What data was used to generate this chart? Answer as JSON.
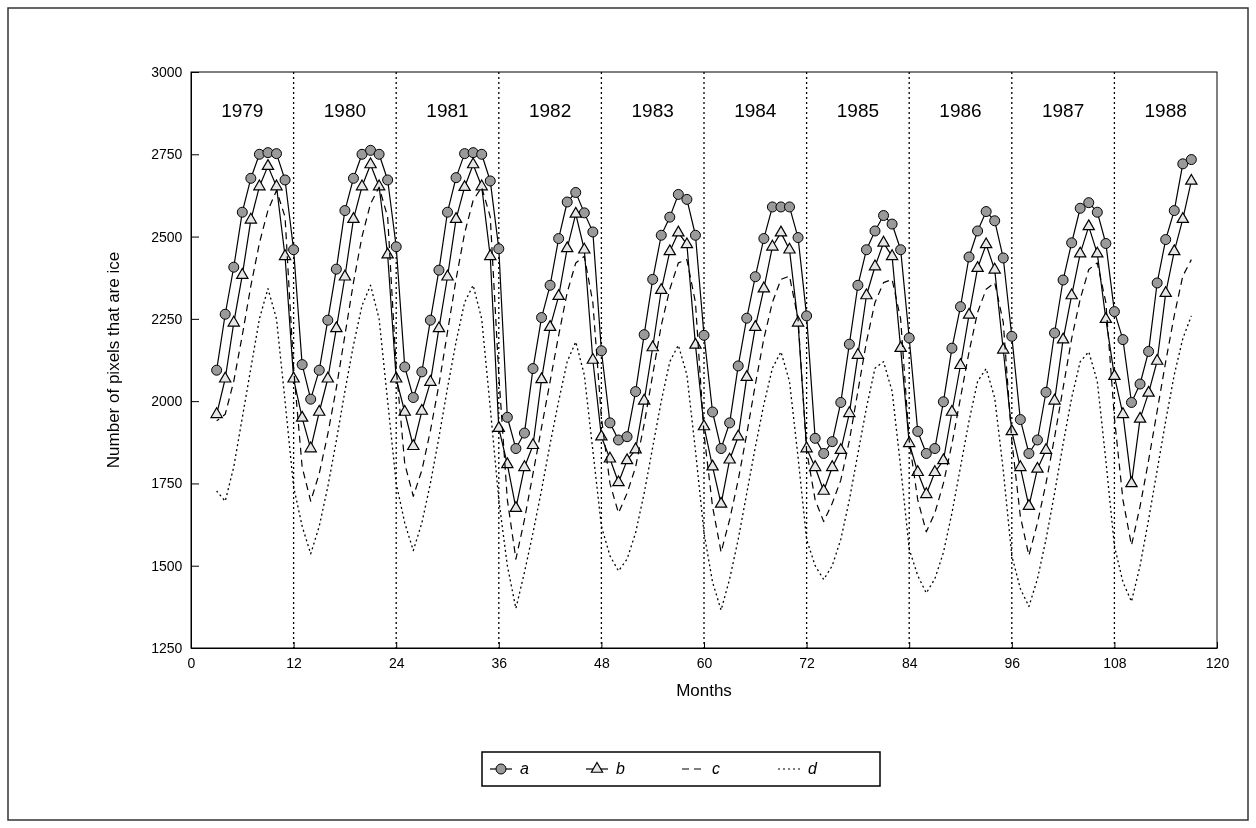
{
  "chart_data": {
    "type": "line",
    "xlabel": "Months",
    "ylabel": "Number of pixels that are ice",
    "x": [
      3,
      4,
      5,
      6,
      7,
      8,
      9,
      10,
      11,
      12,
      13,
      14,
      15,
      16,
      17,
      18,
      19,
      20,
      21,
      22,
      23,
      24,
      25,
      26,
      27,
      28,
      29,
      30,
      31,
      32,
      33,
      34,
      35,
      36,
      37,
      38,
      39,
      40,
      41,
      42,
      43,
      44,
      45,
      46,
      47,
      48,
      49,
      50,
      51,
      52,
      53,
      54,
      55,
      56,
      57,
      58,
      59,
      60,
      61,
      62,
      63,
      64,
      65,
      66,
      67,
      68,
      69,
      70,
      71,
      72,
      73,
      74,
      75,
      76,
      77,
      78,
      79,
      80,
      81,
      82,
      83,
      84,
      85,
      86,
      87,
      88,
      89,
      90,
      91,
      92,
      93,
      94,
      95,
      96,
      97,
      98,
      99,
      100,
      101,
      102,
      103,
      104,
      105,
      106,
      107,
      108,
      109,
      110,
      111,
      112,
      113,
      114,
      115,
      116,
      117
    ],
    "series": [
      {
        "name": "a",
        "color": "#000000",
        "marker": "circle",
        "line_style": "solid",
        "values": [
          2094,
          2264,
          2407,
          2574,
          2677,
          2750,
          2755,
          2752,
          2672,
          2460,
          2111,
          2006,
          2094,
          2246,
          2401,
          2579,
          2677,
          2750,
          2762,
          2750,
          2672,
          2469,
          2104,
          2011,
          2089,
          2246,
          2398,
          2574,
          2679,
          2752,
          2755,
          2750,
          2669,
          2463,
          1951,
          1856,
          1903,
          2099,
          2254,
          2352,
          2494,
          2605,
          2634,
          2572,
          2514,
          2153,
          1934,
          1882,
          1892,
          2029,
          2202,
          2370,
          2504,
          2559,
          2628,
          2613,
          2504,
          2200,
          1967,
          1856,
          1934,
          2107,
          2252,
          2378,
          2494,
          2590,
          2590,
          2590,
          2497,
          2259,
          1887,
          1841,
          1877,
          1996,
          2173,
          2352,
          2460,
          2517,
          2564,
          2538,
          2460,
          2192,
          1908,
          1841,
          1856,
          1998,
          2161,
          2287,
          2438,
          2517,
          2576,
          2548,
          2435,
          2197,
          1944,
          1841,
          1882,
          2027,
          2207,
          2368,
          2481,
          2586,
          2603,
          2574,
          2479,
          2272,
          2187,
          1996,
          2052,
          2151,
          2359,
          2491,
          2579,
          2721,
          2734
        ]
      },
      {
        "name": "b",
        "color": "#000000",
        "marker": "triangle",
        "line_style": "solid",
        "values": [
          1960,
          2068,
          2238,
          2383,
          2551,
          2652,
          2714,
          2652,
          2440,
          2068,
          1949,
          1856,
          1967,
          2068,
          2221,
          2378,
          2553,
          2652,
          2719,
          2652,
          2445,
          2068,
          1967,
          1863,
          1970,
          2058,
          2221,
          2378,
          2553,
          2650,
          2719,
          2652,
          2440,
          1918,
          1808,
          1675,
          1799,
          1866,
          2066,
          2225,
          2319,
          2464,
          2569,
          2460,
          2125,
          1892,
          1825,
          1753,
          1820,
          1853,
          2001,
          2163,
          2337,
          2455,
          2512,
          2476,
          2171,
          1923,
          1801,
          1688,
          1822,
          1892,
          2073,
          2225,
          2342,
          2469,
          2512,
          2460,
          2238,
          1856,
          1799,
          1727,
          1799,
          1851,
          1963,
          2140,
          2321,
          2409,
          2481,
          2440,
          2161,
          1872,
          1784,
          1717,
          1784,
          1820,
          1967,
          2109,
          2262,
          2404,
          2476,
          2399,
          2156,
          1908,
          1799,
          1681,
          1794,
          1851,
          2001,
          2187,
          2321,
          2448,
          2531,
          2448,
          2249,
          2076,
          1960,
          1750,
          1946,
          2025,
          2122,
          2328,
          2455,
          2553,
          2669
        ]
      },
      {
        "name": "c",
        "color": "#000000",
        "marker": "none",
        "line_style": "dashed",
        "values": [
          1940,
          1960,
          2060,
          2200,
          2350,
          2480,
          2580,
          2640,
          2560,
          2100,
          1800,
          1696,
          1780,
          1900,
          2040,
          2200,
          2360,
          2500,
          2600,
          2650,
          2560,
          2100,
          1810,
          1711,
          1790,
          1910,
          2050,
          2210,
          2370,
          2510,
          2610,
          2650,
          2560,
          2080,
          1700,
          1520,
          1640,
          1780,
          1920,
          2060,
          2200,
          2330,
          2420,
          2440,
          2300,
          1950,
          1750,
          1660,
          1720,
          1800,
          1930,
          2080,
          2230,
          2340,
          2420,
          2430,
          2300,
          1900,
          1680,
          1541,
          1640,
          1760,
          1900,
          2050,
          2190,
          2300,
          2370,
          2380,
          2250,
          1850,
          1700,
          1634,
          1690,
          1760,
          1880,
          2030,
          2180,
          2300,
          2360,
          2370,
          2250,
          1880,
          1700,
          1603,
          1660,
          1750,
          1870,
          2010,
          2150,
          2270,
          2340,
          2360,
          2240,
          1880,
          1650,
          1531,
          1630,
          1750,
          1890,
          2040,
          2190,
          2310,
          2400,
          2420,
          2300,
          1950,
          1700,
          1562,
          1680,
          1820,
          1970,
          2120,
          2260,
          2380,
          2430
        ]
      },
      {
        "name": "d",
        "color": "#000000",
        "marker": "none",
        "line_style": "dotted",
        "values": [
          1727,
          1696,
          1800,
          1950,
          2100,
          2250,
          2342,
          2250,
          2000,
          1740,
          1620,
          1536,
          1620,
          1740,
          1880,
          2030,
          2170,
          2290,
          2352,
          2250,
          2000,
          1750,
          1630,
          1546,
          1630,
          1750,
          1890,
          2040,
          2180,
          2300,
          2352,
          2250,
          1980,
          1700,
          1500,
          1370,
          1480,
          1600,
          1730,
          1870,
          2000,
          2120,
          2180,
          2080,
          1850,
          1620,
          1530,
          1484,
          1520,
          1600,
          1720,
          1860,
          2000,
          2120,
          2170,
          2080,
          1850,
          1600,
          1450,
          1365,
          1460,
          1580,
          1720,
          1860,
          1990,
          2100,
          2150,
          2060,
          1830,
          1580,
          1500,
          1458,
          1500,
          1580,
          1700,
          1840,
          1980,
          2100,
          2120,
          2030,
          1800,
          1550,
          1470,
          1417,
          1460,
          1540,
          1660,
          1800,
          1940,
          2060,
          2099,
          2010,
          1790,
          1530,
          1430,
          1376,
          1460,
          1580,
          1720,
          1870,
          2010,
          2120,
          2150,
          2060,
          1820,
          1560,
          1450,
          1391,
          1500,
          1640,
          1790,
          1940,
          2080,
          2190,
          2259
        ]
      }
    ],
    "xlim": [
      0,
      120
    ],
    "xticks": [
      0,
      12,
      24,
      36,
      48,
      60,
      72,
      84,
      96,
      108,
      120
    ],
    "ylim": [
      1250,
      3000
    ],
    "yticks": [
      1250,
      1500,
      1750,
      2000,
      2250,
      2500,
      2750,
      3000
    ],
    "ref_lines": [
      {
        "axis": "x",
        "value": 12,
        "line_style": "dotted"
      },
      {
        "axis": "x",
        "value": 24,
        "line_style": "dotted"
      },
      {
        "axis": "x",
        "value": 36,
        "line_style": "dotted"
      },
      {
        "axis": "x",
        "value": 48,
        "line_style": "dotted"
      },
      {
        "axis": "x",
        "value": 60,
        "line_style": "dotted"
      },
      {
        "axis": "x",
        "value": 72,
        "line_style": "dotted"
      },
      {
        "axis": "x",
        "value": 84,
        "line_style": "dotted"
      },
      {
        "axis": "x",
        "value": 96,
        "line_style": "dotted"
      },
      {
        "axis": "x",
        "value": 108,
        "line_style": "dotted"
      }
    ],
    "annotations": [
      "1979",
      "1980",
      "1981",
      "1982",
      "1983",
      "1984",
      "1985",
      "1986",
      "1987",
      "1988"
    ],
    "grid": false,
    "legend": "bottom"
  }
}
